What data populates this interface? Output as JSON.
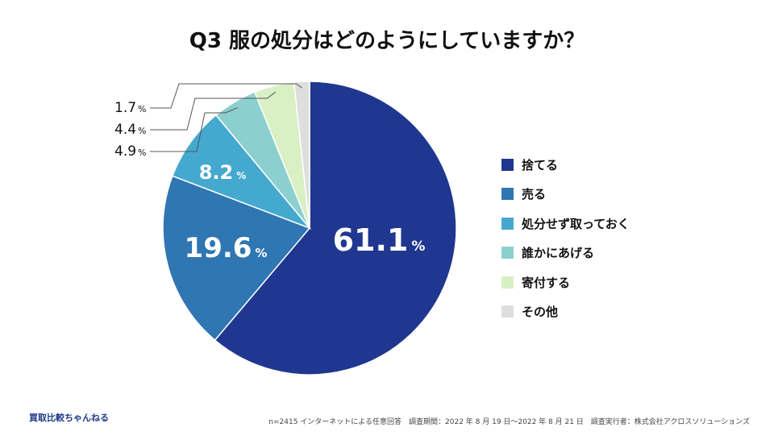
{
  "chart_data": {
    "type": "pie",
    "title": "Q3 服の処分はどのようにしていますか？",
    "slices": [
      {
        "label": "捨てる",
        "value": 61.1,
        "display": "61.1",
        "unit": "%",
        "color": "#1f3790",
        "label_color": "#ffffff"
      },
      {
        "label": "売る",
        "value": 19.6,
        "display": "19.6",
        "unit": "%",
        "color": "#2f76b2",
        "label_color": "#ffffff"
      },
      {
        "label": "処分せず取っておく",
        "value": 8.2,
        "display": "8.2",
        "unit": "%",
        "color": "#44a8cf",
        "label_color": "#ffffff"
      },
      {
        "label": "誰かにあげる",
        "value": 4.9,
        "display": "4.9",
        "unit": "%",
        "color": "#8ccfcf",
        "label_color": "#111111"
      },
      {
        "label": "寄付する",
        "value": 4.4,
        "display": "4.4",
        "unit": "%",
        "color": "#d9efc4",
        "label_color": "#111111"
      },
      {
        "label": "その他",
        "value": 1.7,
        "display": "1.7",
        "unit": "%",
        "color": "#dedede",
        "label_color": "#111111"
      }
    ],
    "legend_position": "right"
  },
  "footer": {
    "brand": "買取比較ちゃんねる",
    "note": "n=2415 インターネットによる任意回答　調査期間：2022 年 8 月 19 日〜2022 年 8 月 21 日　調査実行者：株式会社アクロスソリューションズ"
  }
}
